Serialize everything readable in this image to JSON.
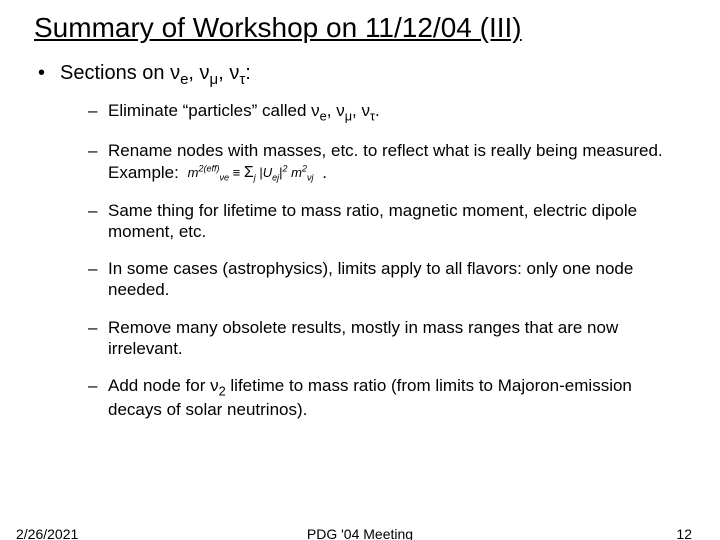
{
  "title": "Summary of Workshop on 11/12/04 (III)",
  "bullet_level1_prefix": "Sections on ",
  "nu_e": "ν",
  "nu_e_sub": "e",
  "nu_mu": "ν",
  "nu_mu_sub": "μ",
  "nu_tau": "ν",
  "nu_tau_sub": "τ",
  "colon": ":",
  "sep_comma": ", ",
  "period": ".",
  "sub_bullets": {
    "eliminate_prefix": "Eliminate “particles” called ",
    "rename_pre": "Rename nodes with masses, etc. to reflect what is really being measured. Example:",
    "rename_post_blank": "                          .",
    "same": "Same thing for lifetime to mass ratio, magnetic moment, electric dipole moment, etc.",
    "astro": "In some cases (astrophysics), limits apply to all flavors: only one node needed.",
    "obsolete": "Remove many obsolete results, mostly in mass ranges that are now irrelevant.",
    "addnode_pre": "Add node for ",
    "nu2": "ν",
    "nu2_sub": "2",
    "addnode_post": " lifetime to mass ratio (from limits to Majoron-emission decays of solar neutrinos)."
  },
  "formula": {
    "lhs_m": "m",
    "lhs_nu": "ν",
    "lhs_e": "e",
    "lhs_sq": "2",
    "lhs_eff": "(eff)",
    "equiv": " ≡ ",
    "sum": "Σ",
    "sum_sub": "j",
    "U": "U",
    "U_sub": "ej",
    "abs_l": "|",
    "abs_r": "|",
    "pow2": "2",
    "m2": "m",
    "nu_j": "ν",
    "j_sub": "j"
  },
  "footer": {
    "date": "2/26/2021",
    "center": "PDG '04 Meeting",
    "page": "12"
  },
  "colors": {
    "text": "#000000",
    "background": "#ffffff"
  },
  "sizes": {
    "title_pt": 28,
    "lvl1_pt": 20,
    "lvl2_pt": 17,
    "footer_pt": 14
  }
}
